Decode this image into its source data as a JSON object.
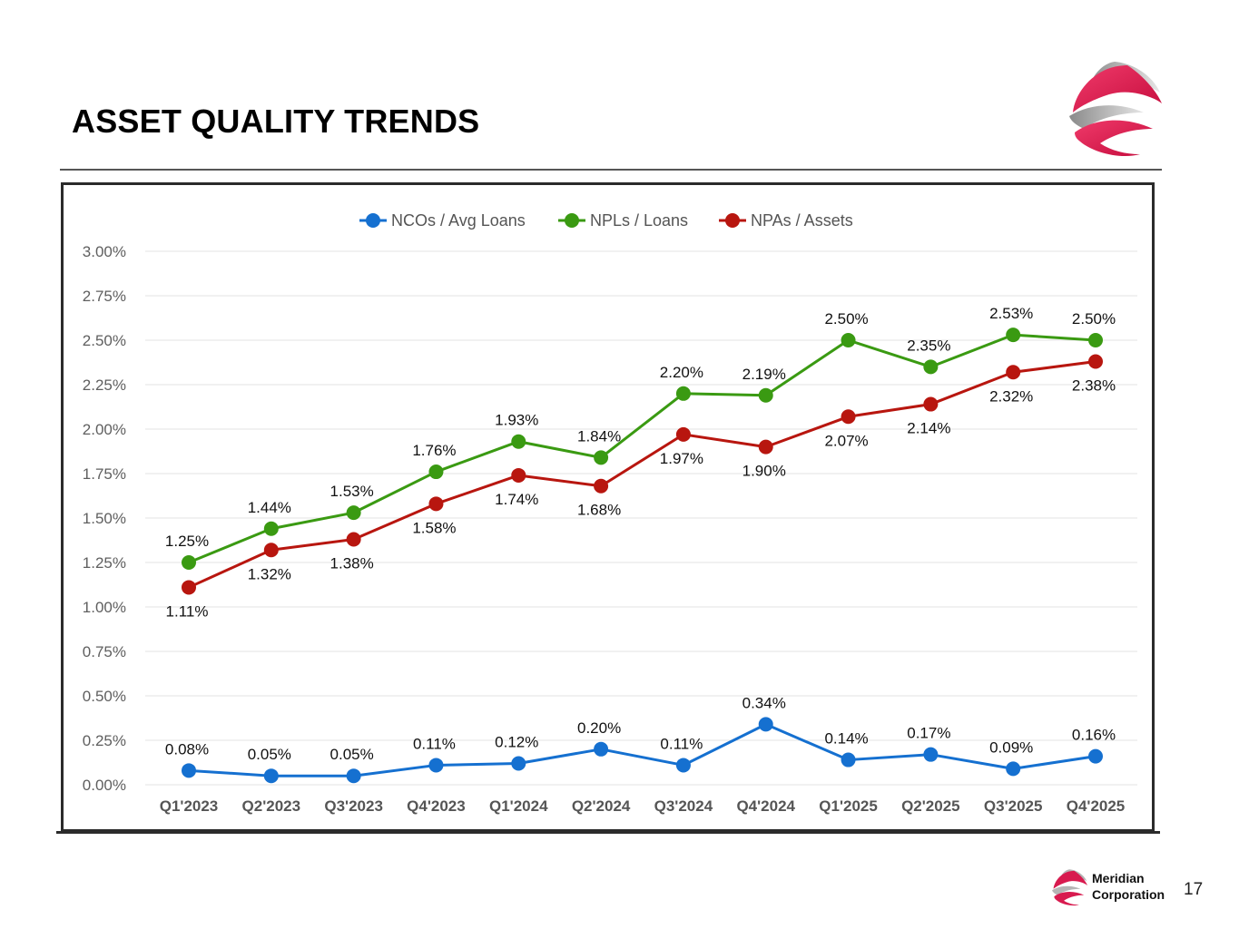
{
  "slide": {
    "title": "ASSET QUALITY TRENDS",
    "company_line1": "Meridian",
    "company_line2": "Corporation",
    "page_number": "17"
  },
  "colors": {
    "ncos": "#1570d0",
    "npls": "#3a9a12",
    "npas": "#b8160f",
    "logo": "#e0164d"
  },
  "chart_data": {
    "type": "line",
    "title": "",
    "xlabel": "",
    "ylabel": "",
    "ylim": [
      0,
      3
    ],
    "yticks": [
      0,
      0.25,
      0.5,
      0.75,
      1,
      1.25,
      1.5,
      1.75,
      2,
      2.25,
      2.5,
      2.75,
      3
    ],
    "ytick_labels": [
      "0.00%",
      "0.25%",
      "0.50%",
      "0.75%",
      "1.00%",
      "1.25%",
      "1.50%",
      "1.75%",
      "2.00%",
      "2.25%",
      "2.50%",
      "2.75%",
      "3.00%"
    ],
    "grid": true,
    "legend_position": "top-center",
    "categories": [
      "Q1'2023",
      "Q2'2023",
      "Q3'2023",
      "Q4'2023",
      "Q1'2024",
      "Q2'2024",
      "Q3'2024",
      "Q4'2024",
      "Q1'2025",
      "Q2'2025",
      "Q3'2025",
      "Q4'2025"
    ],
    "series": [
      {
        "name": "NCOs / Avg Loans",
        "color_key": "ncos",
        "values": [
          0.08,
          0.05,
          0.05,
          0.11,
          0.12,
          0.2,
          0.11,
          0.34,
          0.14,
          0.17,
          0.09,
          0.16
        ],
        "labels": [
          "0.08%",
          "0.05%",
          "0.05%",
          "0.11%",
          "0.12%",
          "0.20%",
          "0.11%",
          "0.34%",
          "0.14%",
          "0.17%",
          "0.09%",
          "0.16%"
        ],
        "label_side": [
          "above",
          "above",
          "above",
          "above",
          "above",
          "above",
          "above",
          "above",
          "above",
          "above",
          "above",
          "above"
        ]
      },
      {
        "name": "NPLs / Loans",
        "color_key": "npls",
        "values": [
          1.25,
          1.44,
          1.53,
          1.76,
          1.93,
          1.84,
          2.2,
          2.19,
          2.5,
          2.35,
          2.53,
          2.5
        ],
        "labels": [
          "1.25%",
          "1.44%",
          "1.53%",
          "1.76%",
          "1.93%",
          "1.84%",
          "2.20%",
          "2.19%",
          "2.50%",
          "2.35%",
          "2.53%",
          "2.50%"
        ],
        "label_side": [
          "above",
          "above",
          "above",
          "above",
          "above",
          "above",
          "above",
          "above",
          "above",
          "above",
          "above",
          "above"
        ]
      },
      {
        "name": "NPAs / Assets",
        "color_key": "npas",
        "values": [
          1.11,
          1.32,
          1.38,
          1.58,
          1.74,
          1.68,
          1.97,
          1.9,
          2.07,
          2.14,
          2.32,
          2.38
        ],
        "labels": [
          "1.11%",
          "1.32%",
          "1.38%",
          "1.58%",
          "1.74%",
          "1.68%",
          "1.97%",
          "1.90%",
          "2.07%",
          "2.14%",
          "2.32%",
          "2.38%"
        ],
        "label_side": [
          "below",
          "below",
          "below",
          "below",
          "below",
          "below",
          "below",
          "below",
          "below",
          "below",
          "below",
          "below"
        ]
      }
    ]
  }
}
